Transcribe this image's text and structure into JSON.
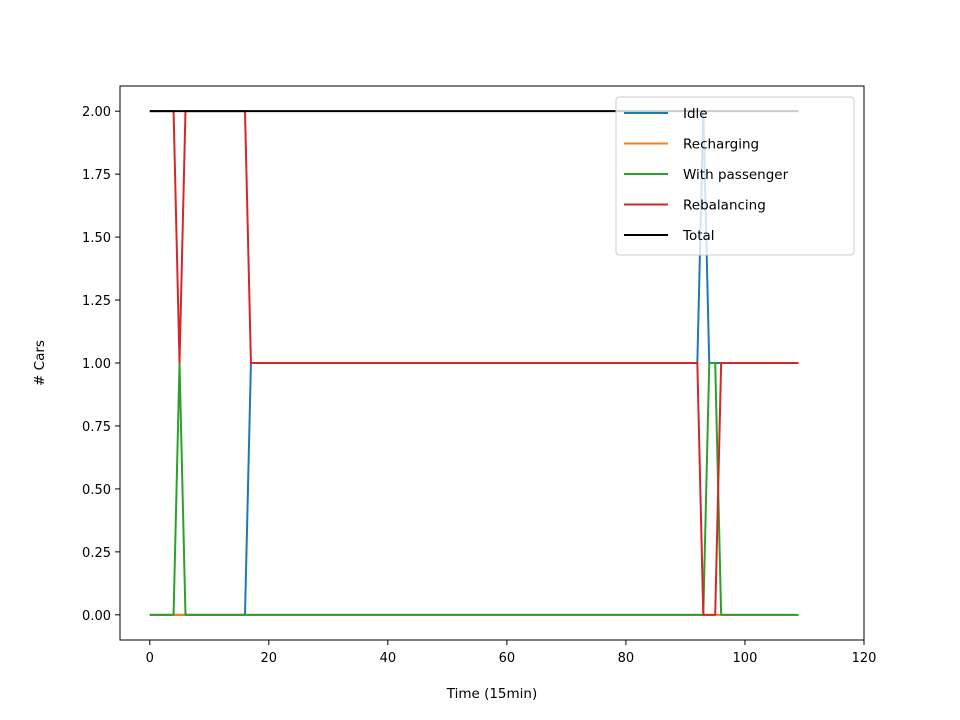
{
  "chart_data": {
    "type": "line",
    "title": "",
    "xlabel": "Time (15min)",
    "ylabel": "# Cars",
    "xlim": [
      -5,
      120
    ],
    "ylim": [
      -0.1,
      2.1
    ],
    "xticks": [
      0,
      20,
      40,
      60,
      80,
      100,
      120
    ],
    "yticks": [
      0.0,
      0.25,
      0.5,
      0.75,
      1.0,
      1.25,
      1.5,
      1.75,
      2.0
    ],
    "xtick_labels": [
      "0",
      "20",
      "40",
      "60",
      "80",
      "100",
      "120"
    ],
    "ytick_labels": [
      "0.00",
      "0.25",
      "0.50",
      "0.75",
      "1.00",
      "1.25",
      "1.50",
      "1.75",
      "2.00"
    ],
    "legend_position": "top-right",
    "grid": false,
    "series": [
      {
        "name": "Idle",
        "color": "#1f77b4",
        "points": [
          [
            0,
            0
          ],
          [
            16,
            0
          ],
          [
            17,
            1
          ],
          [
            92,
            1
          ],
          [
            93,
            2
          ],
          [
            94,
            1
          ],
          [
            109,
            1
          ]
        ]
      },
      {
        "name": "Recharging",
        "color": "#ff7f0e",
        "points": [
          [
            0,
            0
          ],
          [
            109,
            0
          ]
        ]
      },
      {
        "name": "With passenger",
        "color": "#2ca02c",
        "points": [
          [
            0,
            0
          ],
          [
            4,
            0
          ],
          [
            5,
            1
          ],
          [
            6,
            0
          ],
          [
            93,
            0
          ],
          [
            94,
            1
          ],
          [
            95,
            1
          ],
          [
            96,
            0
          ],
          [
            109,
            0
          ]
        ]
      },
      {
        "name": "Rebalancing",
        "color": "#d62728",
        "points": [
          [
            0,
            2
          ],
          [
            4,
            2
          ],
          [
            5,
            1
          ],
          [
            6,
            2
          ],
          [
            16,
            2
          ],
          [
            17,
            1
          ],
          [
            92,
            1
          ],
          [
            93,
            0
          ],
          [
            95,
            0
          ],
          [
            96,
            1
          ],
          [
            109,
            1
          ]
        ]
      },
      {
        "name": "Total",
        "color": "#000000",
        "points": [
          [
            0,
            2
          ],
          [
            109,
            2
          ]
        ]
      }
    ]
  }
}
